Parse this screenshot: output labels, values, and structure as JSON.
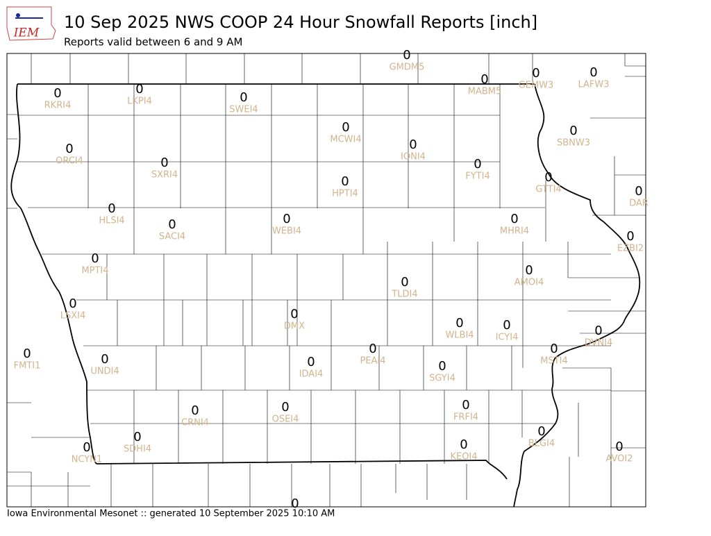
{
  "logo_text": "IEM",
  "title": "10 Sep 2025 NWS COOP 24 Hour Snowfall Reports [inch]",
  "subtitle": "Reports valid between 6 and 9 AM",
  "footer": "Iowa Environmental Mesonet :: generated 10 September 2025 10:10 AM",
  "stations": [
    {
      "id": "GMDM5",
      "value": 0
    },
    {
      "id": "MABM5",
      "value": 0
    },
    {
      "id": "GEMW3",
      "value": 0
    },
    {
      "id": "LAFW3",
      "value": 0
    },
    {
      "id": "RKRI4",
      "value": 0
    },
    {
      "id": "LKPI4",
      "value": 0
    },
    {
      "id": "SWEI4",
      "value": 0
    },
    {
      "id": "MCWI4",
      "value": 0
    },
    {
      "id": "ORCI4",
      "value": 0
    },
    {
      "id": "IONI4",
      "value": 0
    },
    {
      "id": "SBNW3",
      "value": 0
    },
    {
      "id": "SXRI4",
      "value": 0
    },
    {
      "id": "FYTI4",
      "value": 0
    },
    {
      "id": "HPTI4",
      "value": 0
    },
    {
      "id": "GTTI4",
      "value": 0
    },
    {
      "id": "DAR",
      "value": 0
    },
    {
      "id": "HLSI4",
      "value": 0
    },
    {
      "id": "SACI4",
      "value": 0
    },
    {
      "id": "WEBI4",
      "value": 0
    },
    {
      "id": "MHRI4",
      "value": 0
    },
    {
      "id": "EZBI2",
      "value": 0
    },
    {
      "id": "MPTI4",
      "value": 0
    },
    {
      "id": "AMOI4",
      "value": 0
    },
    {
      "id": "TLDI4",
      "value": 0
    },
    {
      "id": "LSXI4",
      "value": 0
    },
    {
      "id": "DMX",
      "value": 0
    },
    {
      "id": "WLBI4",
      "value": 0
    },
    {
      "id": "ICYI4",
      "value": 0
    },
    {
      "id": "DVNI4",
      "value": 0
    },
    {
      "id": "FMTI1",
      "value": 0
    },
    {
      "id": "UNDI4",
      "value": 0
    },
    {
      "id": "PEAI4",
      "value": 0
    },
    {
      "id": "MSTI4",
      "value": 0
    },
    {
      "id": "IDAI4",
      "value": 0
    },
    {
      "id": "SGYI4",
      "value": 0
    },
    {
      "id": "FRFI4",
      "value": 0
    },
    {
      "id": "OSEI4",
      "value": 0
    },
    {
      "id": "CRNI4",
      "value": 0
    },
    {
      "id": "BLGI4",
      "value": 0
    },
    {
      "id": "SDHI4",
      "value": 0
    },
    {
      "id": "NCYN1",
      "value": 0
    },
    {
      "id": "KEOI4",
      "value": 0
    },
    {
      "id": "AVOI2",
      "value": 0
    },
    {
      "value": 0
    }
  ]
}
